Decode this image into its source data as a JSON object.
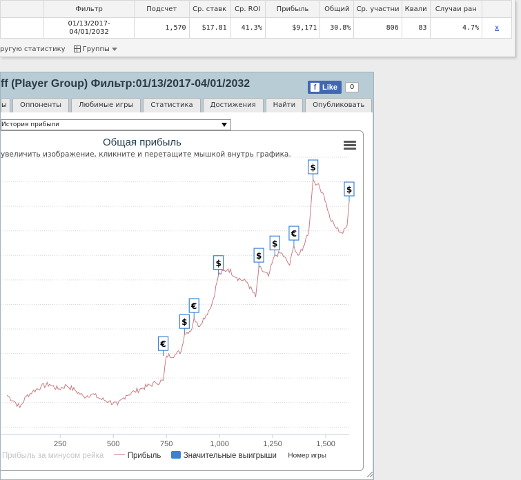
{
  "stats_table": {
    "headers": [
      "",
      "Фильтр",
      "Подсчет",
      "Ср. ставк",
      "Ср. ROI",
      "Прибыль",
      "Общий",
      "Ср. участни",
      "Квали",
      "Случаи ран",
      ""
    ],
    "row": {
      "filter": "01/13/2017-\n04/01/2032",
      "count": "1,570",
      "avg_stake": "$17.81",
      "avg_roi": "41.3%",
      "profit": "$9,171",
      "total": "30.8%",
      "avg_participants": "806",
      "qualification": "83",
      "early_cases": "4.7%",
      "remove": "x"
    }
  },
  "toolbar": {
    "stats_link": "ругую статистику",
    "groups": "Группы"
  },
  "dialog": {
    "title": "ff (Player Group) Фильтр:01/13/2017-04/01/2032",
    "like_label": "Like",
    "like_count": "0",
    "close": "×",
    "tabs": [
      "ы",
      "Оппоненты",
      "Любимые игры",
      "Статистика",
      "Достижения",
      "Найти",
      "Опубликовать"
    ],
    "select_value": "История прибыли"
  },
  "chart_data": {
    "type": "line",
    "title": "Общая прибыль",
    "subtitle": "увеличить изображение, кликните и перетащите мышкой внутрь графика.",
    "xlabel": "Номер игры",
    "x_ticks": [
      250,
      500,
      750,
      1000,
      1250,
      1500
    ],
    "x_tick_labels": [
      "250",
      "500",
      "750",
      "1,000",
      "1,250",
      "1,500"
    ],
    "xlim": [
      -30,
      1610
    ],
    "ylim": [
      -1300,
      10000
    ],
    "y_gridlines": [
      -1000,
      0,
      1000,
      2000,
      3000,
      4000,
      5000,
      6000,
      7000,
      8000,
      9000,
      10000
    ],
    "series": [
      {
        "name": "Прибыль",
        "color": "#c87b80",
        "anchors": [
          [
            0,
            300
          ],
          [
            40,
            0
          ],
          [
            60,
            -200
          ],
          [
            90,
            250
          ],
          [
            120,
            450
          ],
          [
            160,
            650
          ],
          [
            200,
            750
          ],
          [
            240,
            550
          ],
          [
            280,
            700
          ],
          [
            320,
            500
          ],
          [
            360,
            250
          ],
          [
            400,
            350
          ],
          [
            440,
            150
          ],
          [
            480,
            50
          ],
          [
            520,
            -100
          ],
          [
            560,
            300
          ],
          [
            600,
            450
          ],
          [
            640,
            600
          ],
          [
            700,
            800
          ],
          [
            735,
            900
          ],
          [
            750,
            1900
          ],
          [
            790,
            1950
          ],
          [
            820,
            2100
          ],
          [
            835,
            2800
          ],
          [
            870,
            3000
          ],
          [
            880,
            3450
          ],
          [
            900,
            3100
          ],
          [
            960,
            3900
          ],
          [
            970,
            4200
          ],
          [
            995,
            5200
          ],
          [
            1040,
            5450
          ],
          [
            1080,
            5100
          ],
          [
            1130,
            4900
          ],
          [
            1170,
            4300
          ],
          [
            1185,
            5500
          ],
          [
            1230,
            5150
          ],
          [
            1260,
            6000
          ],
          [
            1290,
            6100
          ],
          [
            1330,
            5600
          ],
          [
            1350,
            6400
          ],
          [
            1370,
            6000
          ],
          [
            1390,
            6200
          ],
          [
            1405,
            6650
          ],
          [
            1420,
            7000
          ],
          [
            1440,
            9100
          ],
          [
            1460,
            8900
          ],
          [
            1490,
            8500
          ],
          [
            1520,
            7500
          ],
          [
            1550,
            7100
          ],
          [
            1580,
            6900
          ],
          [
            1600,
            7200
          ],
          [
            1610,
            8200
          ]
        ]
      }
    ],
    "markers": [
      {
        "x": 735,
        "y": 1900,
        "symbol": "€"
      },
      {
        "x": 835,
        "y": 2800,
        "symbol": "$"
      },
      {
        "x": 880,
        "y": 3450,
        "symbol": "€"
      },
      {
        "x": 995,
        "y": 5200,
        "symbol": "$"
      },
      {
        "x": 1185,
        "y": 5500,
        "symbol": "$"
      },
      {
        "x": 1260,
        "y": 6000,
        "symbol": "$"
      },
      {
        "x": 1350,
        "y": 6400,
        "symbol": "€"
      },
      {
        "x": 1440,
        "y": 9100,
        "symbol": "$"
      },
      {
        "x": 1610,
        "y": 8200,
        "symbol": "$"
      }
    ],
    "legend": [
      "Прибыль за минусом рейка",
      "Прибыль",
      "Значительные выигрыши"
    ],
    "legend_colors": [
      "#c6c6c6",
      "#c87b80",
      "#3b82d2"
    ]
  }
}
